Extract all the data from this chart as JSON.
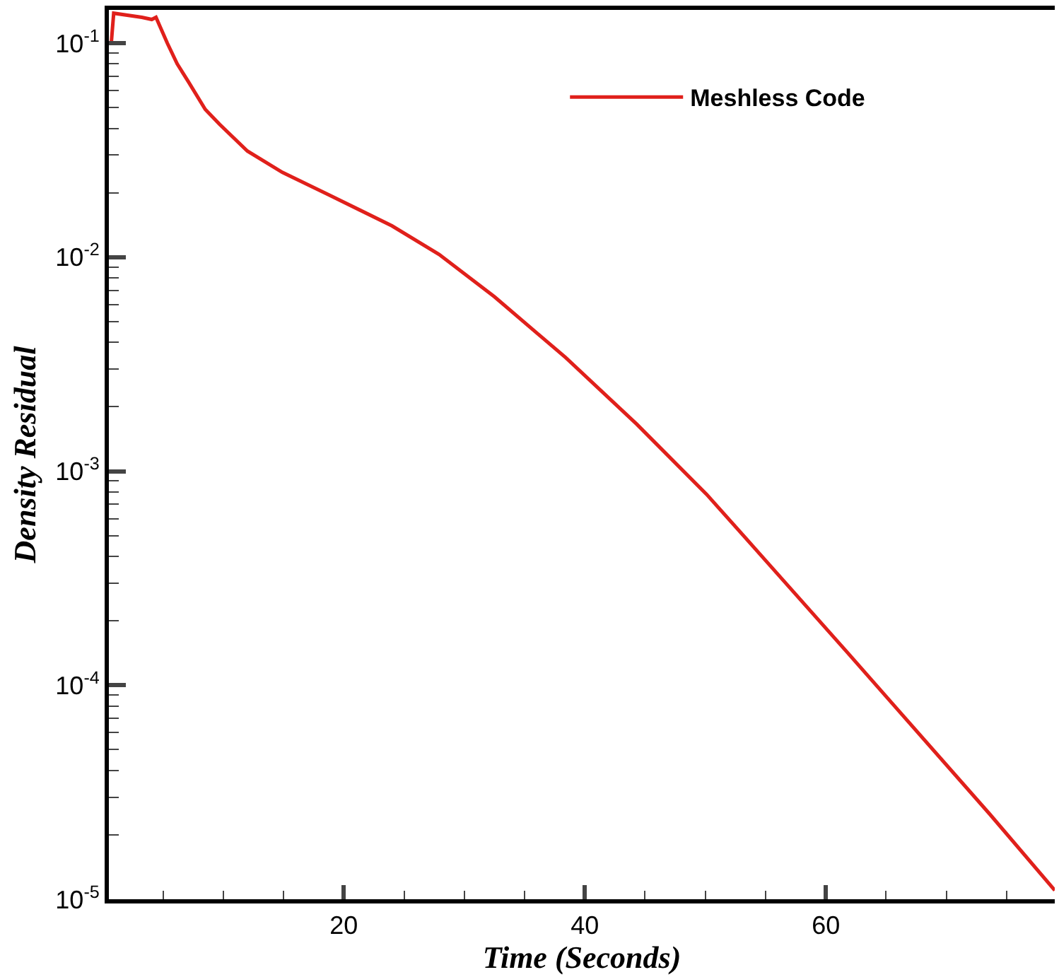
{
  "chart_data": {
    "type": "line",
    "xlabel": "Time (Seconds)",
    "ylabel": "Density Residual",
    "x": [
      0.7,
      0.9,
      3.24,
      4.06,
      4.41,
      5.35,
      6.17,
      7.1,
      8.5,
      9.7,
      12.0,
      14.9,
      18.8,
      24.0,
      27.9,
      32.5,
      38.4,
      44.3,
      50.1,
      54.0,
      61.8,
      73.6,
      79.0
    ],
    "series": [
      {
        "name": "Meshless Code",
        "color": "#e0201b",
        "values": [
          0.1,
          0.138,
          0.132,
          0.129,
          0.132,
          0.1,
          0.08,
          0.066,
          0.049,
          0.0417,
          0.0313,
          0.0249,
          0.0195,
          0.014,
          0.0103,
          0.00653,
          0.0034,
          0.00166,
          0.00078,
          0.000443,
          0.000142,
          2.5e-05,
          1.1e-05
        ]
      }
    ],
    "log": "y",
    "xlim": [
      0.5,
      79
    ],
    "xticks": [
      20,
      40,
      60
    ],
    "ylim": [
      1e-05,
      0.143
    ],
    "yticks": [
      {
        "value": 0.1,
        "label": "10$^{-1}$"
      },
      {
        "value": 0.01,
        "label": "10$^{-2}$"
      },
      {
        "value": 0.001,
        "label": "10$^{-3}$"
      },
      {
        "value": 0.0001,
        "label": "10$^{-4}$"
      },
      {
        "value": 1e-05,
        "label": "10$^{-5}$"
      }
    ],
    "legend": "top right",
    "marker": "none",
    "line_style": "solid"
  }
}
